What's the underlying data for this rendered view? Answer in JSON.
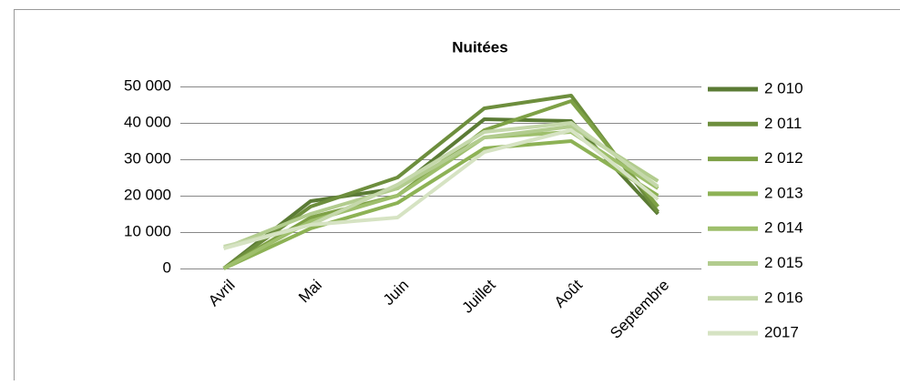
{
  "chart_data": {
    "type": "line",
    "title": "Nuitées",
    "categories": [
      "Avril",
      "Mai",
      "Juin",
      "Juillet",
      "Août",
      "Septembre"
    ],
    "series": [
      {
        "name": "2 010",
        "color": "#5b7b35",
        "values": [
          0,
          18500,
          22000,
          41000,
          40500,
          15000
        ]
      },
      {
        "name": "2 011",
        "color": "#6d8e3d",
        "values": [
          0,
          17000,
          25000,
          44000,
          47500,
          15500
        ]
      },
      {
        "name": "2 012",
        "color": "#7ea146",
        "values": [
          0,
          14000,
          20000,
          38000,
          46000,
          17000
        ]
      },
      {
        "name": "2 013",
        "color": "#8db255",
        "values": [
          0,
          11000,
          18000,
          33000,
          35000,
          20000
        ]
      },
      {
        "name": "2 014",
        "color": "#9ebf6c",
        "values": [
          0,
          13000,
          20000,
          36000,
          37500,
          22000
        ]
      },
      {
        "name": "2 015",
        "color": "#b2cc8e",
        "values": [
          5500,
          15000,
          22000,
          36000,
          39000,
          24000
        ]
      },
      {
        "name": "2 016",
        "color": "#c5d8ab",
        "values": [
          6000,
          12000,
          23000,
          37500,
          40000,
          22500
        ]
      },
      {
        "name": "2017",
        "color": "#d6e3c3",
        "values": [
          5500,
          12000,
          14000,
          32000,
          38000,
          19000
        ]
      }
    ],
    "ylim": [
      0,
      50000
    ],
    "yticks": [
      0,
      {
        "value": 10000,
        "label": "10 000"
      },
      {
        "value": 20000,
        "label": "20 000"
      },
      {
        "value": 30000,
        "label": "30 000"
      },
      {
        "value": 40000,
        "label": "40 000"
      },
      {
        "value": 50000,
        "label": "50 000"
      }
    ],
    "grid": true,
    "legend": "right"
  }
}
